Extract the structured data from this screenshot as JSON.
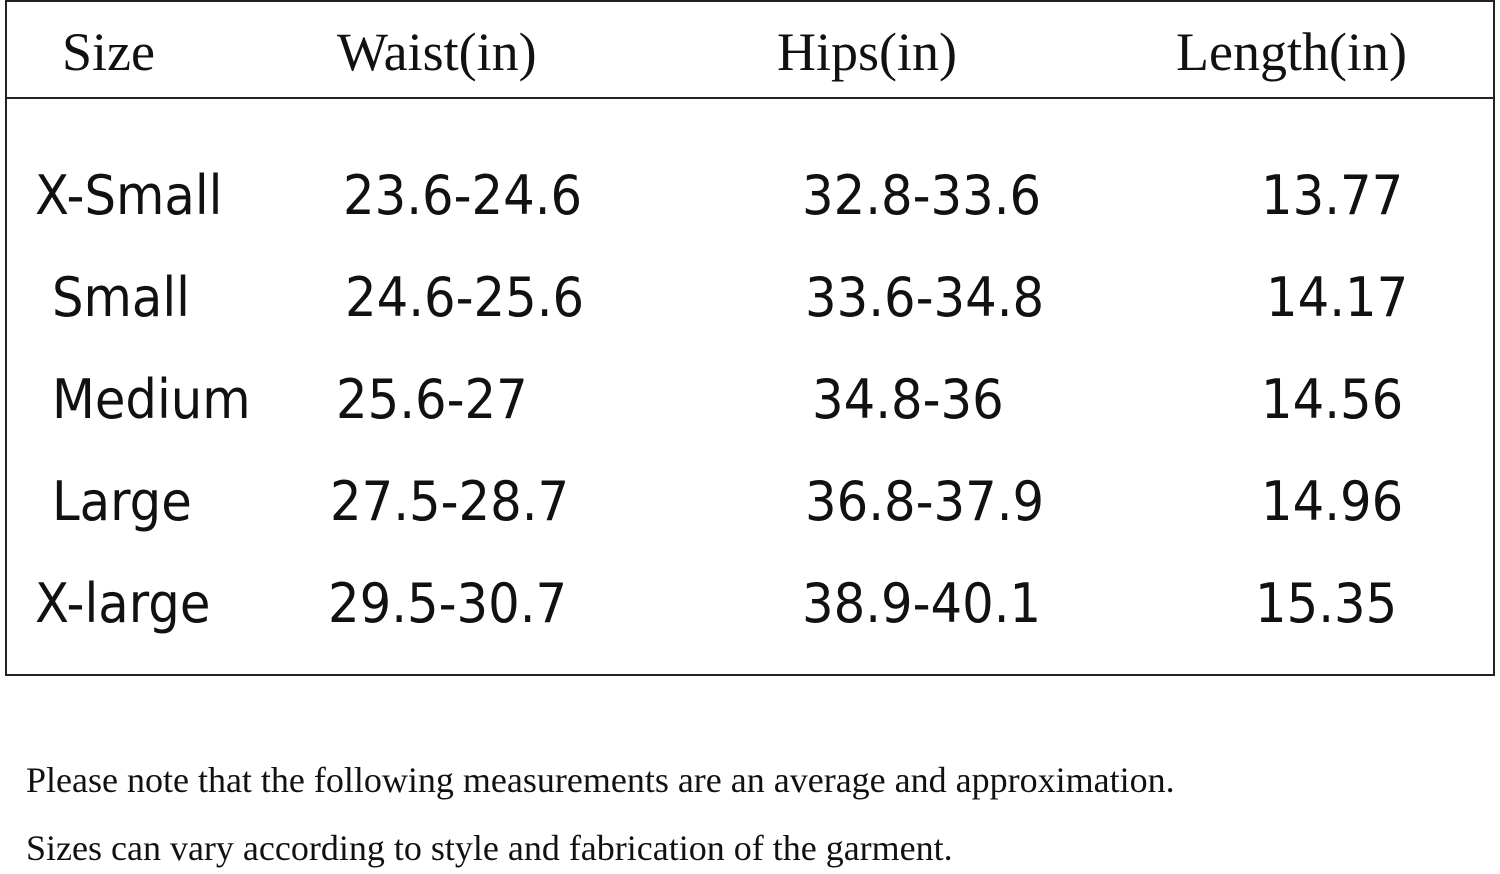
{
  "table": {
    "headers": {
      "size": "Size",
      "waist": "Waist(in)",
      "hips": "Hips(in)",
      "length": "Length(in)"
    },
    "rows": [
      {
        "size": "X-Small",
        "waist": "23.6-24.6",
        "hips": "32.8-33.6",
        "length": "13.77"
      },
      {
        "size": "Small",
        "waist": "24.6-25.6",
        "hips": "33.6-34.8",
        "length": "14.17"
      },
      {
        "size": "Medium",
        "waist": "25.6-27",
        "hips": "34.8-36",
        "length": "14.56"
      },
      {
        "size": "Large",
        "waist": "27.5-28.7",
        "hips": "36.8-37.9",
        "length": "14.96"
      },
      {
        "size": "X-large",
        "waist": "29.5-30.7",
        "hips": "38.9-40.1",
        "length": "15.35"
      }
    ]
  },
  "notes": {
    "line1": "Please note that the following measurements are an average and approximation.",
    "line2": "Sizes can vary according to style and fabrication of the garment."
  }
}
